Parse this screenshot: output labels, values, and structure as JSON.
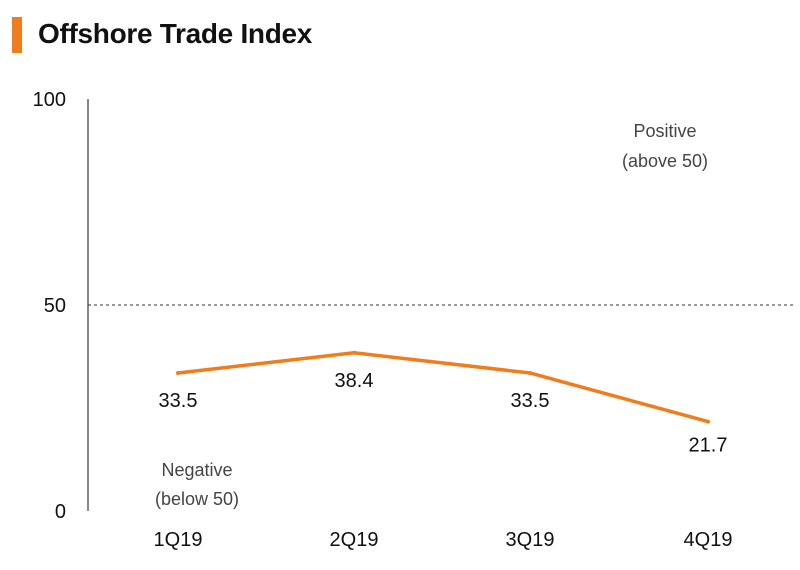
{
  "header": {
    "title": "Offshore Trade Index"
  },
  "colors": {
    "accent": "#f07d1d",
    "line": "#f07d1d",
    "axis": "#111111",
    "text": "#111111",
    "annotation": "#444444"
  },
  "chart_data": {
    "type": "line",
    "title": "Offshore Trade Index",
    "xlabel": "",
    "ylabel": "",
    "categories": [
      "1Q19",
      "2Q19",
      "3Q19",
      "4Q19"
    ],
    "series": [
      {
        "name": "Offshore Trade Index",
        "values": [
          33.5,
          38.4,
          33.5,
          21.7
        ],
        "labels": [
          "33.5",
          "38.4",
          "33.5",
          "21.7"
        ]
      }
    ],
    "ylim": [
      0,
      100
    ],
    "y_ticks": [
      0,
      50,
      100
    ],
    "y_tick_labels": [
      "0",
      "50",
      "100"
    ],
    "reference_line": {
      "value": 50,
      "style": "dotted"
    },
    "annotations": {
      "positive": [
        "Positive",
        "(above 50)"
      ],
      "negative": [
        "Negative",
        "(below 50)"
      ]
    },
    "grid": false,
    "legend": "none"
  }
}
